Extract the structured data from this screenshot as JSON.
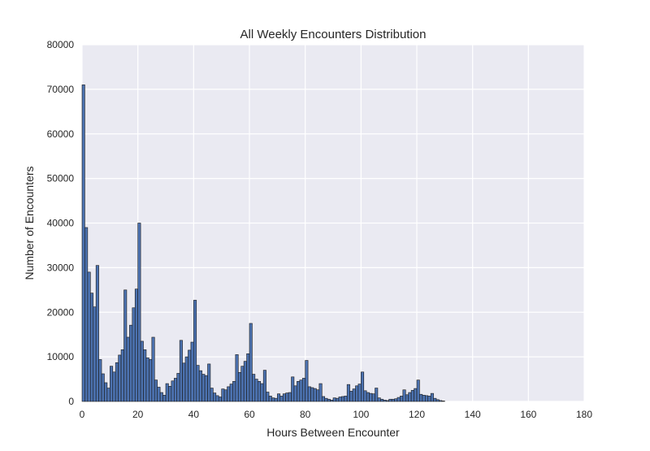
{
  "chart_data": {
    "type": "bar",
    "title": "All Weekly Encounters Distribution",
    "xlabel": "Hours Between Encounter",
    "ylabel": "Number of Encounters",
    "xlim": [
      0,
      180
    ],
    "ylim": [
      0,
      80000
    ],
    "x_ticks": [
      "0",
      "20",
      "40",
      "60",
      "80",
      "100",
      "120",
      "140",
      "160",
      "180"
    ],
    "y_ticks": [
      "0",
      "10000",
      "20000",
      "30000",
      "40000",
      "50000",
      "60000",
      "70000",
      "80000"
    ],
    "grid": true,
    "background": "#eaeaf2",
    "bar_color": "#4c72b0",
    "bin_width": 1,
    "bin_start": 0,
    "values": [
      71000,
      39000,
      29000,
      24300,
      21200,
      30500,
      9400,
      6200,
      4200,
      3000,
      7900,
      6600,
      8700,
      10400,
      11600,
      25000,
      14400,
      17100,
      21000,
      25200,
      40000,
      13500,
      11600,
      9800,
      9400,
      14400,
      4800,
      3200,
      2000,
      1400,
      4000,
      3400,
      4600,
      5200,
      6300,
      13700,
      8600,
      10000,
      11500,
      13300,
      22700,
      8100,
      6900,
      6100,
      5800,
      8400,
      3000,
      1900,
      1300,
      1000,
      2800,
      2600,
      3300,
      3900,
      4500,
      10500,
      6500,
      7900,
      9000,
      10700,
      17500,
      6100,
      5000,
      4500,
      4000,
      7000,
      2100,
      1200,
      800,
      700,
      1700,
      1200,
      1700,
      1900,
      2000,
      5500,
      3500,
      4500,
      4800,
      5200,
      9200,
      3300,
      3100,
      2900,
      2600,
      4000,
      1100,
      700,
      500,
      300,
      800,
      700,
      1000,
      1100,
      1200,
      3800,
      2300,
      2800,
      3500,
      3900,
      6600,
      2400,
      2000,
      1800,
      1700,
      3000,
      800,
      500,
      300,
      200,
      500,
      500,
      600,
      900,
      1200,
      2600,
      1500,
      2000,
      2500,
      2900,
      4800,
      1600,
      1400,
      1300,
      1200,
      1800,
      700,
      400,
      200,
      100,
      0,
      0,
      0,
      0,
      0,
      0,
      0,
      0,
      0,
      0,
      0,
      0,
      0,
      0,
      0,
      0,
      0,
      0,
      0,
      0,
      0,
      0,
      0,
      0,
      0,
      0,
      0,
      0,
      0,
      0,
      0,
      0,
      0,
      0,
      0,
      0,
      0,
      0,
      0,
      0,
      0,
      0,
      0,
      0,
      0,
      0,
      0,
      0,
      0,
      0
    ]
  }
}
